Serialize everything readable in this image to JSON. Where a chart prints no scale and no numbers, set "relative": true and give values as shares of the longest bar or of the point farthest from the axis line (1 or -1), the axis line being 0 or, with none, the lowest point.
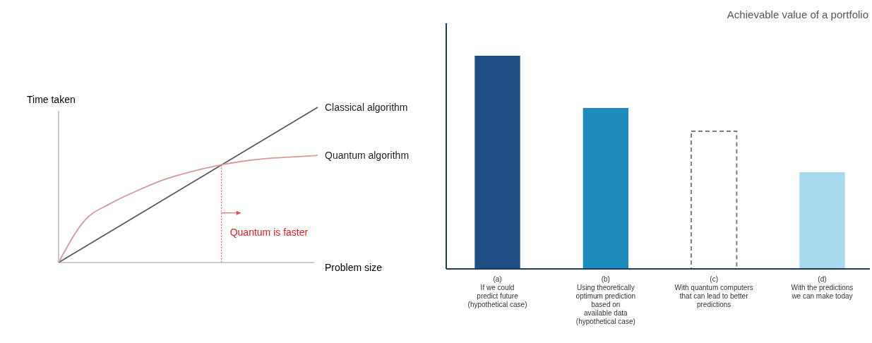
{
  "chart_data": [
    {
      "type": "line",
      "relative": true,
      "xlabel": "Problem size",
      "ylabel": "Time taken",
      "categories": [
        null,
        null,
        null,
        null,
        null,
        null,
        null,
        null,
        null,
        null,
        null
      ],
      "series": [
        {
          "name": "Classical algorithm",
          "color": "#5a5a5a",
          "values": [
            0,
            0.1,
            0.2,
            0.3,
            0.4,
            0.5,
            0.6,
            0.7,
            0.8,
            0.9,
            1
          ]
        },
        {
          "name": "Quantum algorithm",
          "color": "#d99a9a",
          "values": [
            0,
            0.27,
            0.38,
            0.46,
            0.53,
            0.58,
            0.62,
            0.65,
            0.67,
            0.68,
            0.69
          ]
        }
      ],
      "annotations": [
        "Quantum is faster"
      ]
    },
    {
      "type": "bar",
      "relative": true,
      "title": "Achievable value of a portfolio",
      "categories": [
        "(a)\nIf we could\npredict future\n(hypothetical case)",
        "(b)\nUsing theoretically\noptimum prediction\nbased on\navailable data\n(hypothetical case)",
        "(c)\nWith quantum computers\nthat can lead to better\npredictions",
        "(d)\nWith the predictions\nwe can make today"
      ],
      "series": [
        {
          "colors": [
            "#1f4e84",
            "#1f8bbd",
            null,
            "#a9d9ef"
          ],
          "values": [
            1,
            0.755,
            null,
            0.454
          ]
        },
        {
          "color": "#808080",
          "line_style": "dashed",
          "values": [
            null,
            null,
            0.646,
            null
          ]
        }
      ]
    }
  ]
}
